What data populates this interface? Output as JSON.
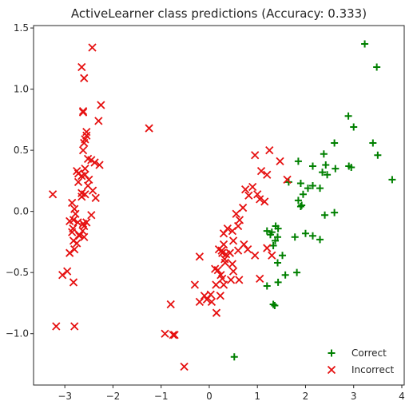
{
  "chart_data": {
    "type": "scatter",
    "title": "ActiveLearner class predictions (Accuracy: 0.333)",
    "xlabel": "",
    "ylabel": "",
    "xlim": [
      -3.65,
      4.05
    ],
    "ylim": [
      -1.42,
      1.52
    ],
    "xticks": [
      -3,
      -2,
      -1,
      0,
      1,
      2,
      3,
      4
    ],
    "yticks": [
      -1.0,
      -0.5,
      0.0,
      0.5,
      1.0,
      1.5
    ],
    "xtick_labels": [
      "−3",
      "−2",
      "−1",
      "0",
      "1",
      "2",
      "3",
      "4"
    ],
    "ytick_labels": [
      "−1.0",
      "−0.5",
      "0.0",
      "0.5",
      "1.0",
      "1.5"
    ],
    "grid": false,
    "legend_position": "lower-right",
    "series": [
      {
        "name": "Correct",
        "marker": "plus",
        "color": "#008000",
        "x": [
          3.23,
          3.48,
          2.89,
          3.0,
          3.4,
          3.5,
          2.6,
          2.38,
          1.85,
          2.15,
          2.42,
          2.9,
          2.95,
          3.8,
          2.62,
          2.35,
          2.45,
          1.9,
          2.15,
          2.05,
          2.3,
          1.95,
          1.85,
          1.65,
          1.92,
          1.9,
          2.6,
          2.4,
          1.38,
          1.43,
          1.2,
          1.3,
          1.27,
          1.42,
          1.78,
          2.0,
          2.15,
          2.3,
          1.37,
          1.33,
          1.52,
          1.42,
          1.82,
          1.58,
          1.43,
          1.2,
          1.33,
          1.36,
          0.52
        ],
        "y": [
          1.37,
          1.18,
          0.78,
          0.69,
          0.56,
          0.46,
          0.56,
          0.47,
          0.41,
          0.37,
          0.38,
          0.37,
          0.36,
          0.26,
          0.35,
          0.32,
          0.3,
          0.23,
          0.21,
          0.19,
          0.19,
          0.14,
          0.09,
          0.24,
          0.05,
          0.04,
          -0.01,
          -0.03,
          -0.12,
          -0.14,
          -0.16,
          -0.17,
          -0.19,
          -0.21,
          -0.21,
          -0.18,
          -0.2,
          -0.23,
          -0.24,
          -0.28,
          -0.36,
          -0.42,
          -0.5,
          -0.52,
          -0.58,
          -0.61,
          -0.76,
          -0.77,
          -1.19
        ]
      },
      {
        "name": "Incorrect",
        "marker": "x",
        "color": "#e61010",
        "x": [
          -2.43,
          -2.65,
          -2.6,
          -2.62,
          -2.62,
          -2.25,
          -2.3,
          -2.55,
          -2.55,
          -2.58,
          -2.6,
          -2.62,
          -2.45,
          -2.52,
          -2.38,
          -2.28,
          -2.58,
          -2.75,
          -2.72,
          -2.65,
          -2.58,
          -2.5,
          -2.52,
          -2.42,
          -2.36,
          -2.58,
          -2.72,
          -2.65,
          -2.65,
          -2.85,
          -2.8,
          -2.78,
          -2.82,
          -2.9,
          -2.73,
          -2.83,
          -2.85,
          -2.7,
          -2.6,
          -2.63,
          -2.6,
          -2.45,
          -2.55,
          -2.62,
          -2.7,
          -2.82,
          -2.75,
          -2.8,
          -2.9,
          -3.25,
          -2.95,
          -3.05,
          -2.82,
          -3.18,
          -2.8,
          -1.25,
          1.25,
          1.47,
          1.2,
          0.95,
          1.08,
          1.62,
          0.9,
          1.0,
          1.05,
          1.15,
          1.3,
          0.75,
          0.82,
          0.7,
          0.56,
          0.63,
          0.6,
          0.38,
          0.3,
          0.48,
          0.5,
          0.3,
          0.8,
          0.72,
          0.6,
          0.43,
          0.26,
          0.2,
          0.27,
          -0.2,
          0.32,
          0.33,
          0.12,
          0.18,
          0.24,
          0.3,
          0.5,
          0.27,
          0.45,
          0.62,
          -0.3,
          0.14,
          0.03,
          0.23,
          0.95,
          1.2,
          0.35,
          0.48,
          -0.2,
          -0.1,
          0.05,
          -0.05,
          1.05,
          -0.8,
          0.15,
          -0.92,
          -0.75,
          -0.72,
          -0.52
        ],
        "y": [
          1.34,
          1.18,
          1.09,
          0.82,
          0.81,
          0.87,
          0.74,
          0.65,
          0.62,
          0.59,
          0.56,
          0.5,
          0.42,
          0.43,
          0.4,
          0.38,
          0.35,
          0.33,
          0.31,
          0.29,
          0.3,
          0.26,
          0.21,
          0.17,
          0.11,
          0.14,
          0.24,
          0.15,
          0.12,
          0.07,
          0.02,
          -0.02,
          -0.07,
          -0.08,
          -0.09,
          -0.14,
          -0.17,
          -0.19,
          -0.21,
          -0.16,
          -0.12,
          -0.03,
          -0.09,
          -0.1,
          -0.2,
          -0.24,
          -0.26,
          -0.31,
          -0.34,
          0.14,
          -0.49,
          -0.52,
          -0.58,
          -0.94,
          -0.94,
          0.68,
          0.5,
          0.41,
          0.3,
          0.46,
          0.33,
          0.26,
          0.2,
          0.14,
          0.1,
          0.08,
          -0.36,
          0.18,
          0.13,
          0.03,
          -0.02,
          -0.07,
          -0.12,
          -0.14,
          -0.18,
          -0.16,
          -0.24,
          -0.27,
          -0.31,
          -0.27,
          -0.32,
          -0.34,
          -0.32,
          -0.31,
          -0.34,
          -0.37,
          -0.39,
          -0.42,
          -0.47,
          -0.48,
          -0.52,
          -0.6,
          -0.49,
          -0.55,
          -0.56,
          -0.56,
          -0.6,
          -0.6,
          -0.68,
          -0.69,
          -0.36,
          -0.3,
          -0.35,
          -0.43,
          -0.74,
          -0.69,
          -0.74,
          -0.72,
          -0.55,
          -0.76,
          -0.83,
          -1.0,
          -1.01,
          -1.01,
          -1.27
        ]
      }
    ]
  }
}
